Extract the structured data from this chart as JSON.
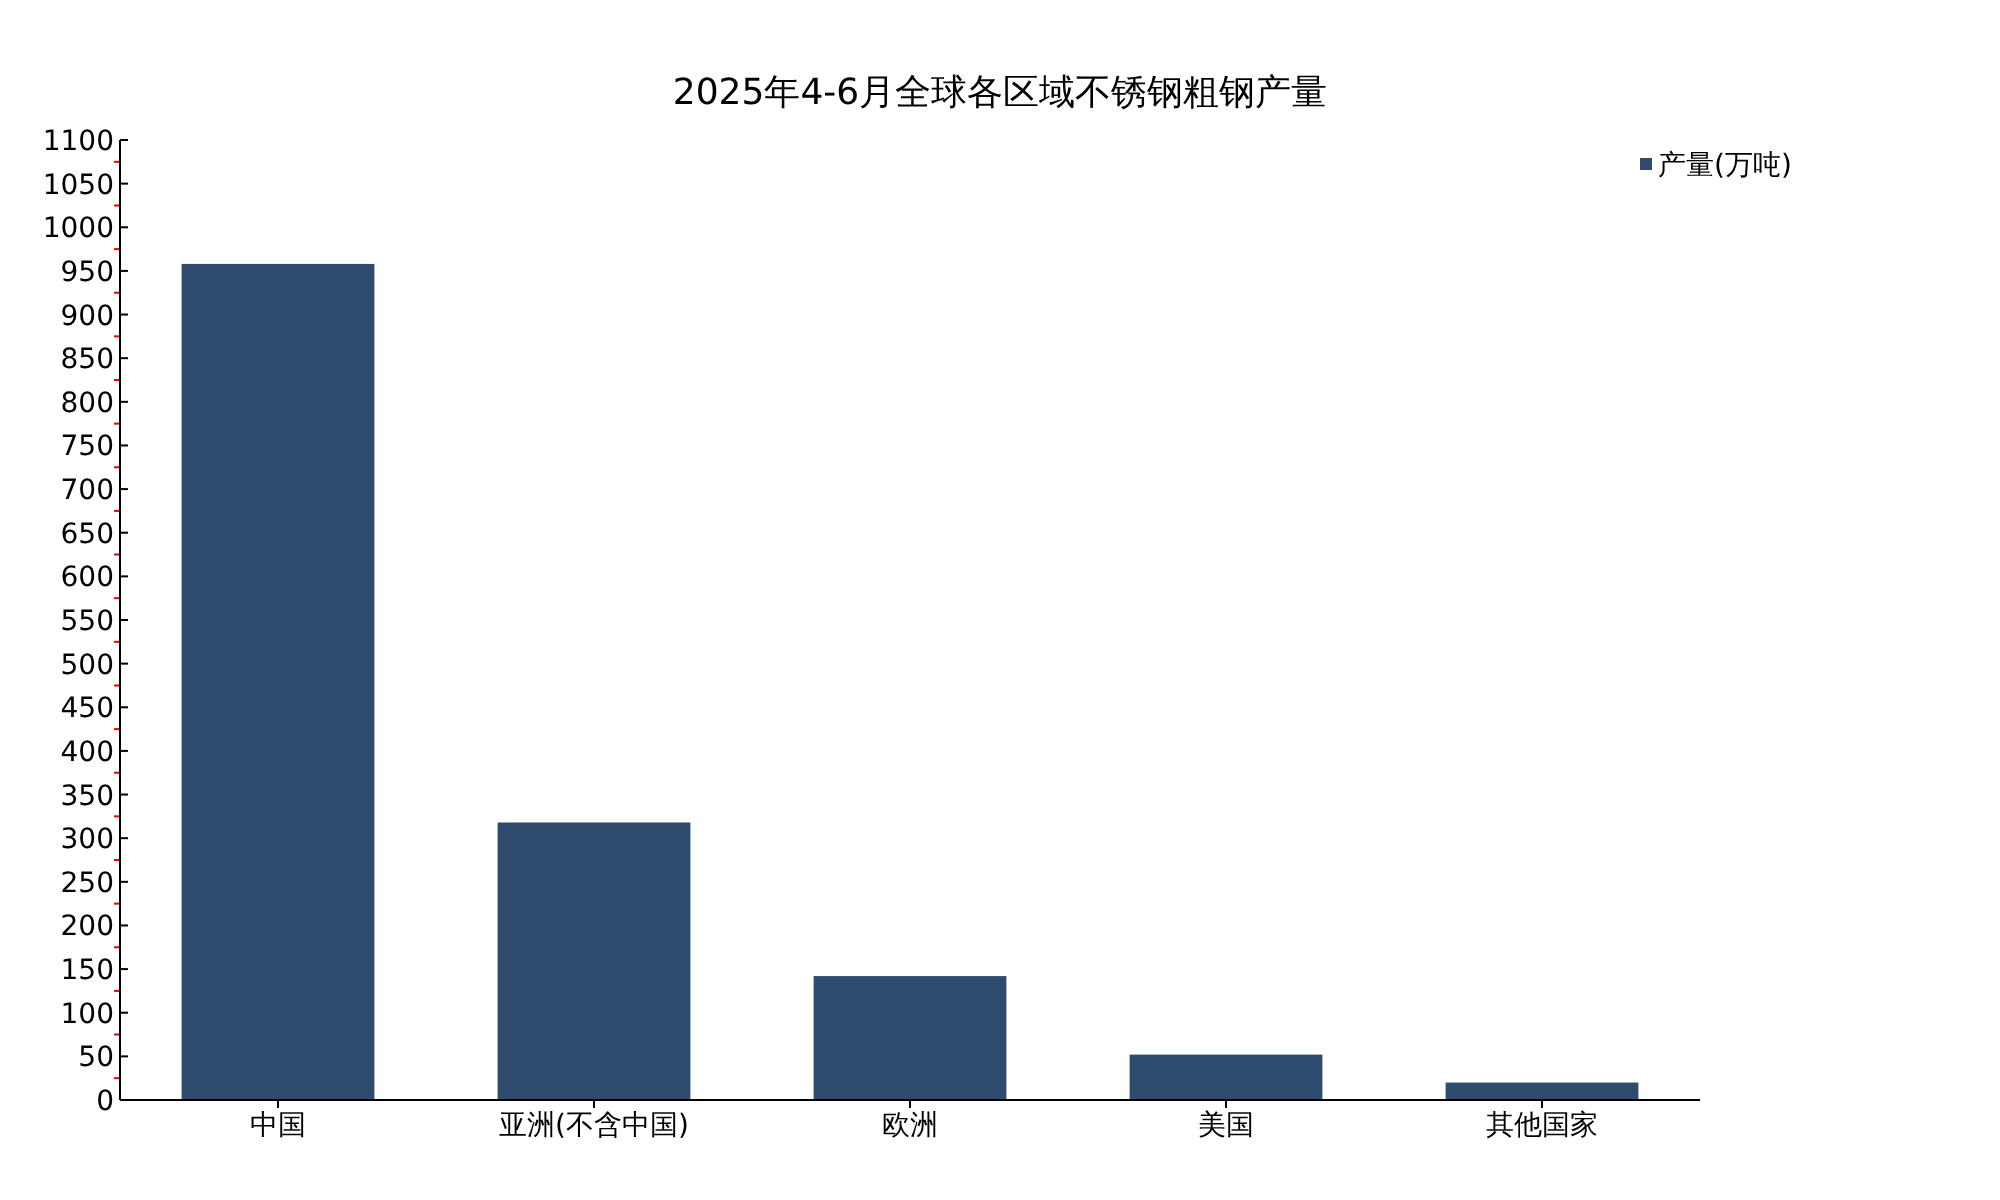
{
  "chart_data": {
    "type": "bar",
    "title": "2025年4-6月全球各区域不锈钢粗钢产量",
    "categories": [
      "中国",
      "亚洲(不含中国)",
      "欧洲",
      "美国",
      "其他国家"
    ],
    "series": [
      {
        "name": "产量(万吨)",
        "color": "#2f4b6e",
        "values": [
          958,
          318,
          142,
          52,
          20
        ]
      }
    ],
    "ylim": [
      0,
      1100
    ],
    "yticks": [
      0,
      50,
      100,
      150,
      200,
      250,
      300,
      350,
      400,
      450,
      500,
      550,
      600,
      650,
      700,
      750,
      800,
      850,
      900,
      950,
      1000,
      1050,
      1100
    ],
    "legend": "top right",
    "grid": false
  }
}
